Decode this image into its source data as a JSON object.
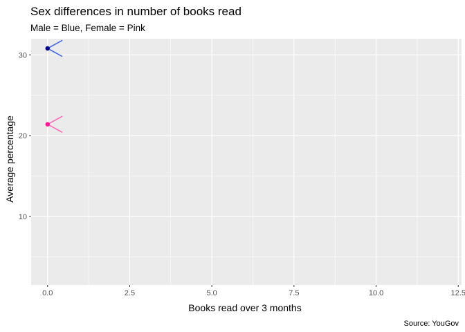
{
  "chart_data": {
    "type": "scatter",
    "title": "Sex differences in number of books read",
    "subtitle": "Male = Blue, Female = Pink",
    "xlabel": "Books read over 3 months",
    "ylabel": "Average percentage",
    "caption": "Source: YouGov",
    "xlim": [
      -0.5,
      12.6
    ],
    "ylim": [
      1.5,
      32.0
    ],
    "x_ticks": [
      0,
      2.5,
      5,
      7.5,
      10,
      12.5
    ],
    "x_tick_labels": [
      "0.0",
      "2.5",
      "5.0",
      "7.5",
      "10.0",
      "12.5"
    ],
    "y_ticks": [
      10,
      20,
      30
    ],
    "y_tick_labels": [
      "10",
      "20",
      "30"
    ],
    "grid": true,
    "series": [
      {
        "color": "#00008b",
        "line_color": "#4169e1",
        "points": [
          {
            "x": 0,
            "y": 30.8
          }
        ],
        "segments": [
          {
            "from": [
              0,
              30.8
            ],
            "to": [
              0.45,
              31.8
            ]
          },
          {
            "from": [
              0,
              30.8
            ],
            "to": [
              0.45,
              29.8
            ]
          }
        ]
      },
      {
        "color": "#ff1493",
        "line_color": "#ff69b4",
        "points": [
          {
            "x": 0,
            "y": 21.4
          }
        ],
        "segments": [
          {
            "from": [
              0,
              21.4
            ],
            "to": [
              0.45,
              22.4
            ]
          },
          {
            "from": [
              0,
              21.4
            ],
            "to": [
              0.45,
              20.4
            ]
          }
        ]
      }
    ]
  }
}
